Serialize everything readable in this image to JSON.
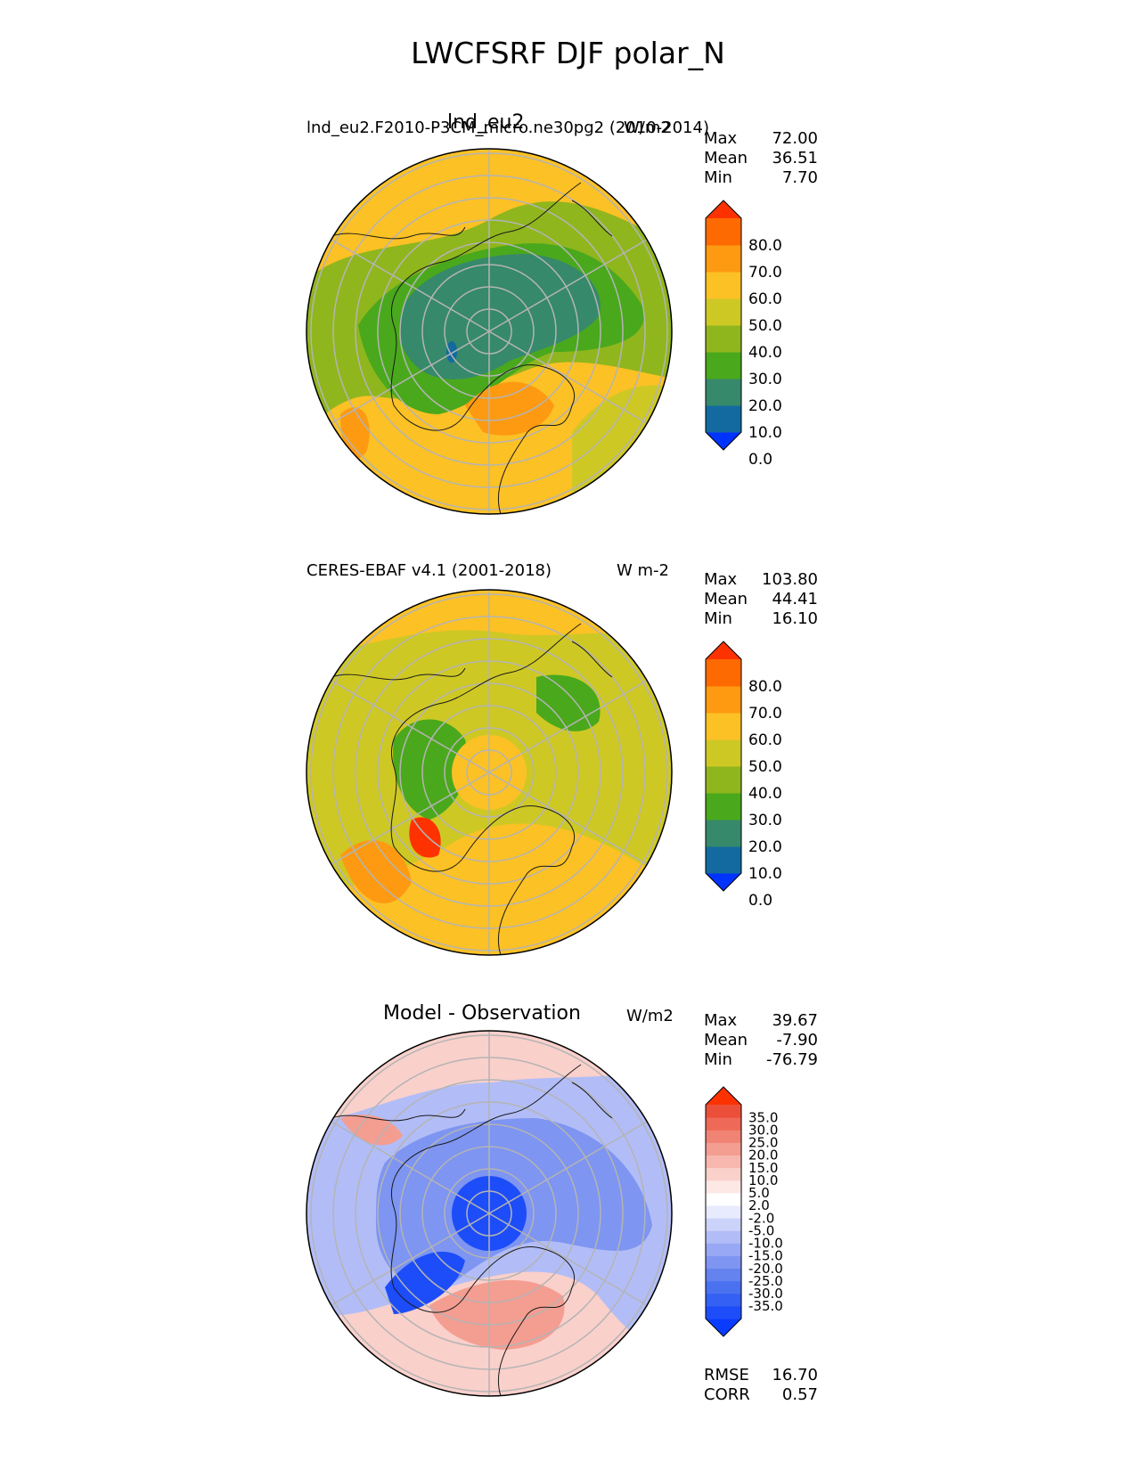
{
  "figure_title": "LWCFSRF DJF polar_N",
  "chart_data": [
    {
      "type": "heatmap",
      "projection": "north-polar-stereographic",
      "title": "lnd_eu2",
      "subtitle": "lnd_eu2.F2010-P3CM_micro.ne30pg2 (2010-2014)",
      "units": "W/m2",
      "stats": {
        "Max": "72.00",
        "Mean": "36.51",
        "Min": "7.70"
      },
      "colorbar": {
        "ticks": [
          "80.0",
          "70.0",
          "60.0",
          "50.0",
          "40.0",
          "30.0",
          "20.0",
          "10.0",
          "0.0"
        ],
        "colors": [
          "#0033ff",
          "#126aa0",
          "#36896b",
          "#4aa81c",
          "#8fb61d",
          "#cec825",
          "#fcc125",
          "#fd9a11",
          "#fe6a02",
          "#fe3200"
        ]
      },
      "field_description": "Higher values (50-70) over Atlantic/Greenland sector and continental margins; lower values (10-30) over Arctic Ocean and Siberia"
    },
    {
      "type": "heatmap",
      "projection": "north-polar-stereographic",
      "title": "",
      "subtitle": "CERES-EBAF v4.1 (2001-2018)",
      "units": "W m-2",
      "stats": {
        "Max": "103.80",
        "Mean": "44.41",
        "Min": "16.10"
      },
      "colorbar": {
        "ticks": [
          "80.0",
          "70.0",
          "60.0",
          "50.0",
          "40.0",
          "30.0",
          "20.0",
          "10.0",
          "0.0"
        ],
        "colors": [
          "#0033ff",
          "#126aa0",
          "#36896b",
          "#4aa81c",
          "#8fb61d",
          "#cec825",
          "#fcc125",
          "#fd9a11",
          "#fe6a02",
          "#fe3200"
        ]
      },
      "field_description": "Mostly 40-60 across the domain; maxima near southern Greenland"
    },
    {
      "type": "heatmap",
      "projection": "north-polar-stereographic",
      "title": "Model - Observation",
      "subtitle": "",
      "units": "W/m2",
      "stats": {
        "Max": "39.67",
        "Mean": "-7.90",
        "Min": "-76.79"
      },
      "extra_stats": {
        "RMSE": "16.70",
        "CORR": "0.57"
      },
      "colorbar": {
        "ticks": [
          "35.0",
          "30.0",
          "25.0",
          "20.0",
          "15.0",
          "10.0",
          "5.0",
          "2.0",
          "-2.0",
          "-5.0",
          "-10.0",
          "-15.0",
          "-20.0",
          "-25.0",
          "-30.0",
          "-35.0"
        ],
        "colors": [
          "#0a3cff",
          "#1d4df8",
          "#3460f4",
          "#4a72f0",
          "#6483ef",
          "#7e95f1",
          "#98a8f4",
          "#b2bdf7",
          "#ccd3fa",
          "#e8ebfd",
          "#ffffff",
          "#fde8e6",
          "#fad0cb",
          "#f7b7ae",
          "#f49d91",
          "#f18374",
          "#ee6957",
          "#eb4f3a",
          "#fe3200"
        ]
      },
      "field_description": "Negative (blue) over most of the Arctic Ocean and Greenland; positive (red) over North Atlantic / Norwegian Sea and northern edges"
    }
  ]
}
